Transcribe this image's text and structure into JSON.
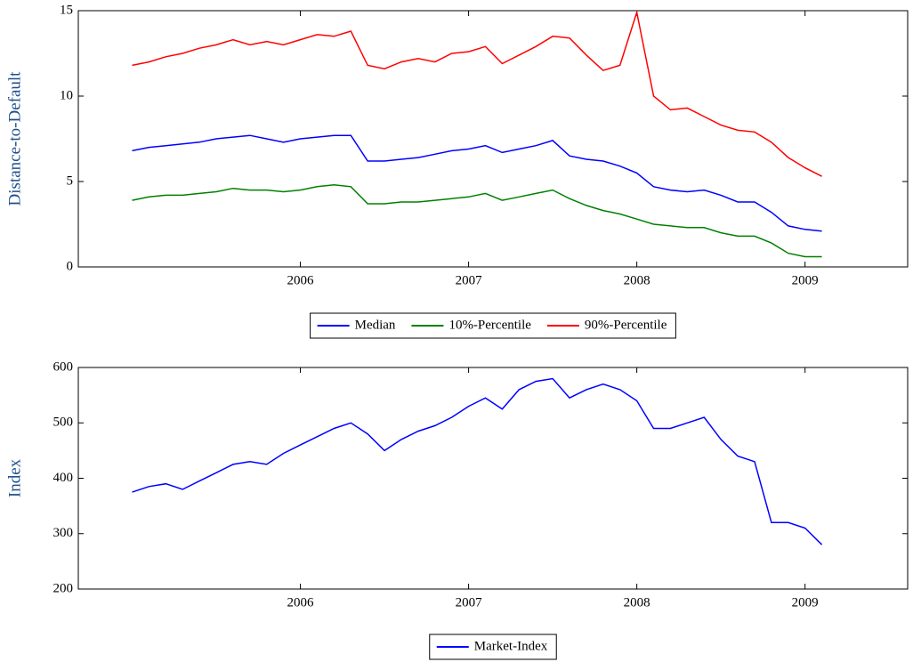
{
  "chart_data": [
    {
      "type": "line",
      "y_label": "Distance-to-Default",
      "x": [
        2005.0,
        2005.1,
        2005.2,
        2005.3,
        2005.4,
        2005.5,
        2005.6,
        2005.7,
        2005.8,
        2005.9,
        2006.0,
        2006.1,
        2006.2,
        2006.3,
        2006.4,
        2006.5,
        2006.6,
        2006.7,
        2006.8,
        2006.9,
        2007.0,
        2007.1,
        2007.2,
        2007.3,
        2007.4,
        2007.5,
        2007.6,
        2007.7,
        2007.8,
        2007.9,
        2008.0,
        2008.1,
        2008.2,
        2008.3,
        2008.4,
        2008.5,
        2008.6,
        2008.7,
        2008.8,
        2008.9,
        2009.0,
        2009.1
      ],
      "series": [
        {
          "name": "Median",
          "color": "#0000ff",
          "values": [
            6.8,
            7.0,
            7.1,
            7.2,
            7.3,
            7.5,
            7.6,
            7.7,
            7.5,
            7.3,
            7.5,
            7.6,
            7.7,
            7.7,
            6.2,
            6.2,
            6.3,
            6.4,
            6.6,
            6.8,
            6.9,
            7.1,
            6.7,
            6.9,
            7.1,
            7.4,
            6.5,
            6.3,
            6.2,
            5.9,
            5.5,
            4.7,
            4.5,
            4.4,
            4.5,
            4.2,
            3.8,
            3.8,
            3.2,
            2.4,
            2.2,
            2.1
          ]
        },
        {
          "name": "10%-Percentile",
          "color": "#008000",
          "values": [
            3.9,
            4.1,
            4.2,
            4.2,
            4.3,
            4.4,
            4.6,
            4.5,
            4.5,
            4.4,
            4.5,
            4.7,
            4.8,
            4.7,
            3.7,
            3.7,
            3.8,
            3.8,
            3.9,
            4.0,
            4.1,
            4.3,
            3.9,
            4.1,
            4.3,
            4.5,
            4.0,
            3.6,
            3.3,
            3.1,
            2.8,
            2.5,
            2.4,
            2.3,
            2.3,
            2.0,
            1.8,
            1.8,
            1.4,
            0.8,
            0.6,
            0.6
          ]
        },
        {
          "name": "90%-Percentile",
          "color": "#ff0000",
          "values": [
            11.8,
            12.0,
            12.3,
            12.5,
            12.8,
            13.0,
            13.3,
            13.0,
            13.2,
            13.0,
            13.3,
            13.6,
            13.5,
            13.8,
            11.8,
            11.6,
            12.0,
            12.2,
            12.0,
            12.5,
            12.6,
            12.9,
            11.9,
            12.4,
            12.9,
            13.5,
            13.4,
            12.4,
            11.5,
            11.8,
            14.9,
            10.0,
            9.2,
            9.3,
            8.8,
            8.3,
            8.0,
            7.9,
            7.3,
            6.4,
            5.8,
            5.3
          ]
        }
      ],
      "xlim": [
        2004.68,
        2009.61
      ],
      "xticks": [
        2006,
        2007,
        2008,
        2009
      ],
      "ylim": [
        0,
        15
      ],
      "yticks": [
        0,
        5,
        10,
        15
      ],
      "legend": "bottom"
    },
    {
      "type": "line",
      "y_label": "Index",
      "x": [
        2005.0,
        2005.1,
        2005.2,
        2005.3,
        2005.4,
        2005.5,
        2005.6,
        2005.7,
        2005.8,
        2005.9,
        2006.0,
        2006.1,
        2006.2,
        2006.3,
        2006.4,
        2006.5,
        2006.6,
        2006.7,
        2006.8,
        2006.9,
        2007.0,
        2007.1,
        2007.2,
        2007.3,
        2007.4,
        2007.5,
        2007.6,
        2007.7,
        2007.8,
        2007.9,
        2008.0,
        2008.1,
        2008.2,
        2008.3,
        2008.4,
        2008.5,
        2008.6,
        2008.7,
        2008.8,
        2008.9,
        2009.0,
        2009.1
      ],
      "series": [
        {
          "name": "Market-Index",
          "color": "#0000ff",
          "values": [
            375,
            385,
            390,
            380,
            395,
            410,
            425,
            430,
            425,
            445,
            460,
            475,
            490,
            500,
            480,
            450,
            470,
            485,
            495,
            510,
            530,
            545,
            525,
            560,
            575,
            580,
            545,
            560,
            570,
            560,
            540,
            490,
            490,
            500,
            510,
            470,
            440,
            430,
            320,
            320,
            310,
            280
          ]
        }
      ],
      "xlim": [
        2004.68,
        2009.61
      ],
      "xticks": [
        2006,
        2007,
        2008,
        2009
      ],
      "ylim": [
        200,
        600
      ],
      "yticks": [
        200,
        300,
        400,
        500,
        600
      ],
      "legend": "bottom"
    }
  ]
}
